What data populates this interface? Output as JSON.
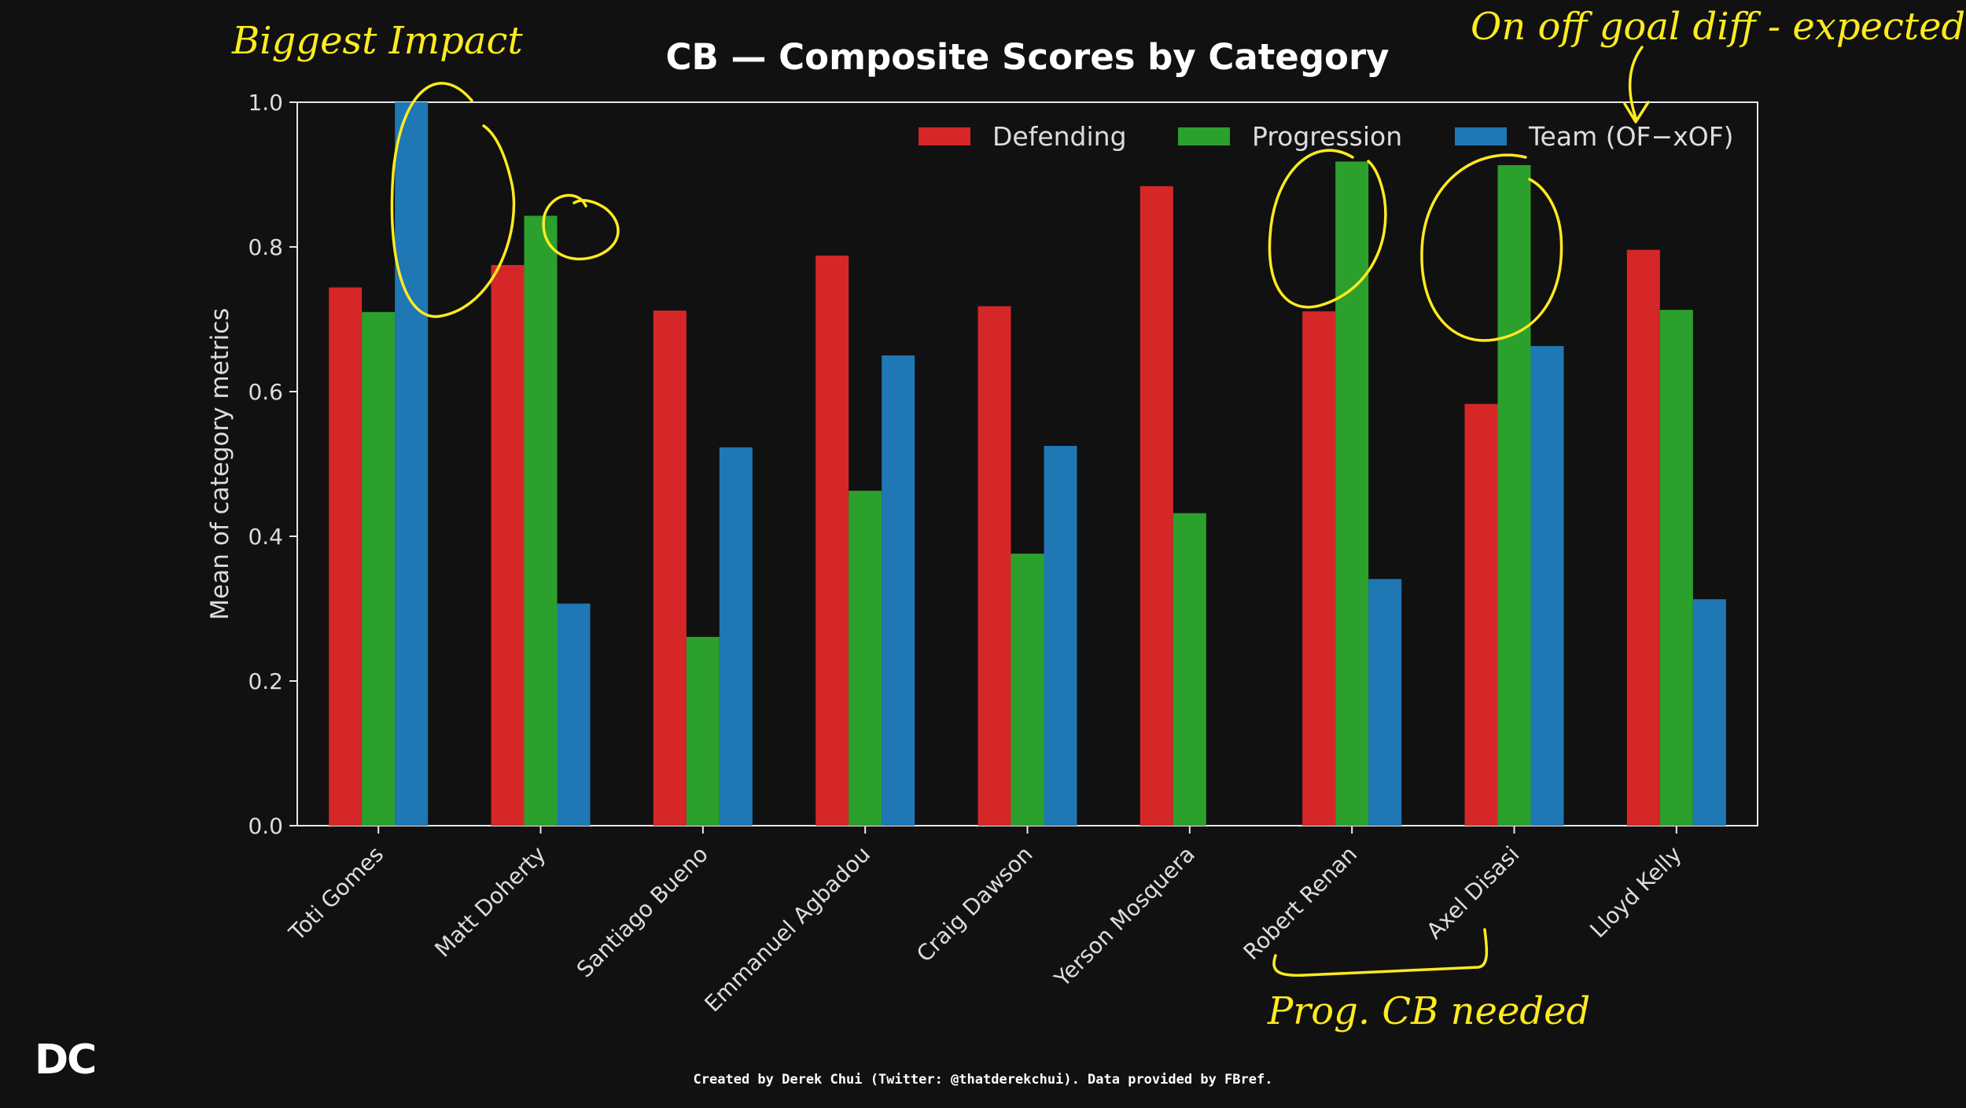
{
  "chart_data": {
    "type": "bar",
    "title": "CB — Composite Scores by Category",
    "xlabel": "",
    "ylabel": "Mean of category metrics",
    "ylim": [
      0,
      1.0
    ],
    "yticks": [
      "0.0",
      "0.2",
      "0.4",
      "0.6",
      "0.8",
      "1.0"
    ],
    "categories": [
      "Toti Gomes",
      "Matt Doherty",
      "Santiago Bueno",
      "Emmanuel Agbadou",
      "Craig Dawson",
      "Yerson Mosquera",
      "Robert Renan",
      "Axel Disasi",
      "Lloyd Kelly"
    ],
    "series": [
      {
        "name": "Defending",
        "color": "#d62728",
        "values": [
          0.744,
          0.775,
          0.712,
          0.788,
          0.718,
          0.884,
          0.711,
          0.583,
          0.796
        ]
      },
      {
        "name": "Progression",
        "color": "#2ca02c",
        "values": [
          0.71,
          0.843,
          0.261,
          0.463,
          0.376,
          0.432,
          0.918,
          0.913,
          0.713
        ]
      },
      {
        "name": "Team (OF−xOF)",
        "color": "#1f77b4",
        "values": [
          1.0,
          0.307,
          0.523,
          0.65,
          0.525,
          0.0,
          0.341,
          0.663,
          0.313
        ]
      }
    ],
    "grid": false,
    "legend_position": "top-right"
  },
  "annotations": {
    "biggest_impact": "Biggest Impact",
    "on_off": "On off goal diff - expected",
    "prog_cb": "Prog. CB needed"
  },
  "branding": {
    "logo": "DC",
    "credit": "Created by Derek Chui (Twitter: @thatderekchui). Data provided by FBref."
  },
  "colors": {
    "background": "#111111",
    "annotation": "#ffeb1f",
    "text": "#dddddd"
  }
}
